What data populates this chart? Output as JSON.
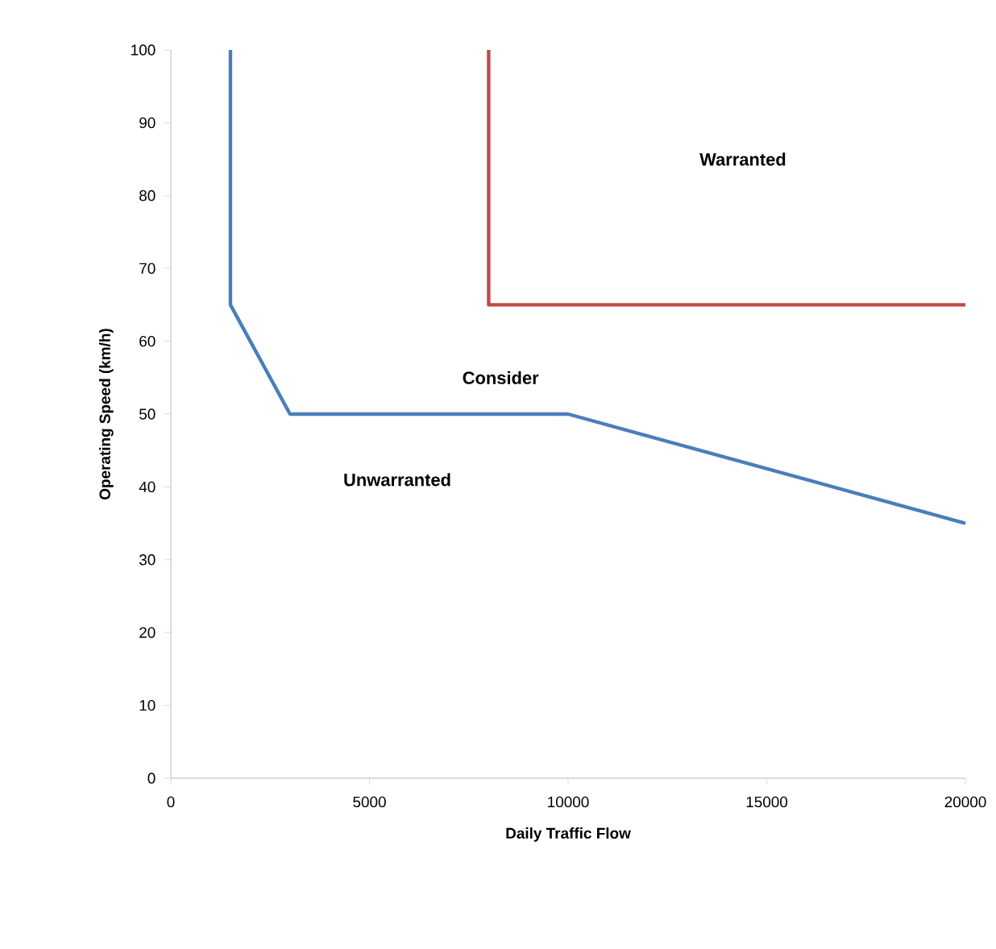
{
  "chart_data": {
    "type": "line",
    "xlabel": "Daily Traffic Flow",
    "ylabel": "Operating Speed (km/h)",
    "series": [
      {
        "color": "#4a7ebb",
        "x": [
          1500,
          1500,
          3000,
          10000,
          20000
        ],
        "values": [
          100,
          65,
          50,
          50,
          35
        ]
      },
      {
        "color": "#be4b48",
        "x": [
          8000,
          8000,
          20000
        ],
        "values": [
          100,
          65,
          65
        ]
      }
    ],
    "xlim": [
      0,
      20000
    ],
    "ylim": [
      0,
      100
    ],
    "xticks": [
      0,
      5000,
      10000,
      15000,
      20000
    ],
    "yticks": [
      0,
      10,
      20,
      30,
      40,
      50,
      60,
      70,
      80,
      90,
      100
    ],
    "annotations": [
      "Warranted",
      "Consider",
      "Unwarranted"
    ],
    "grid": false,
    "marker": "none",
    "line_style": "solid"
  }
}
